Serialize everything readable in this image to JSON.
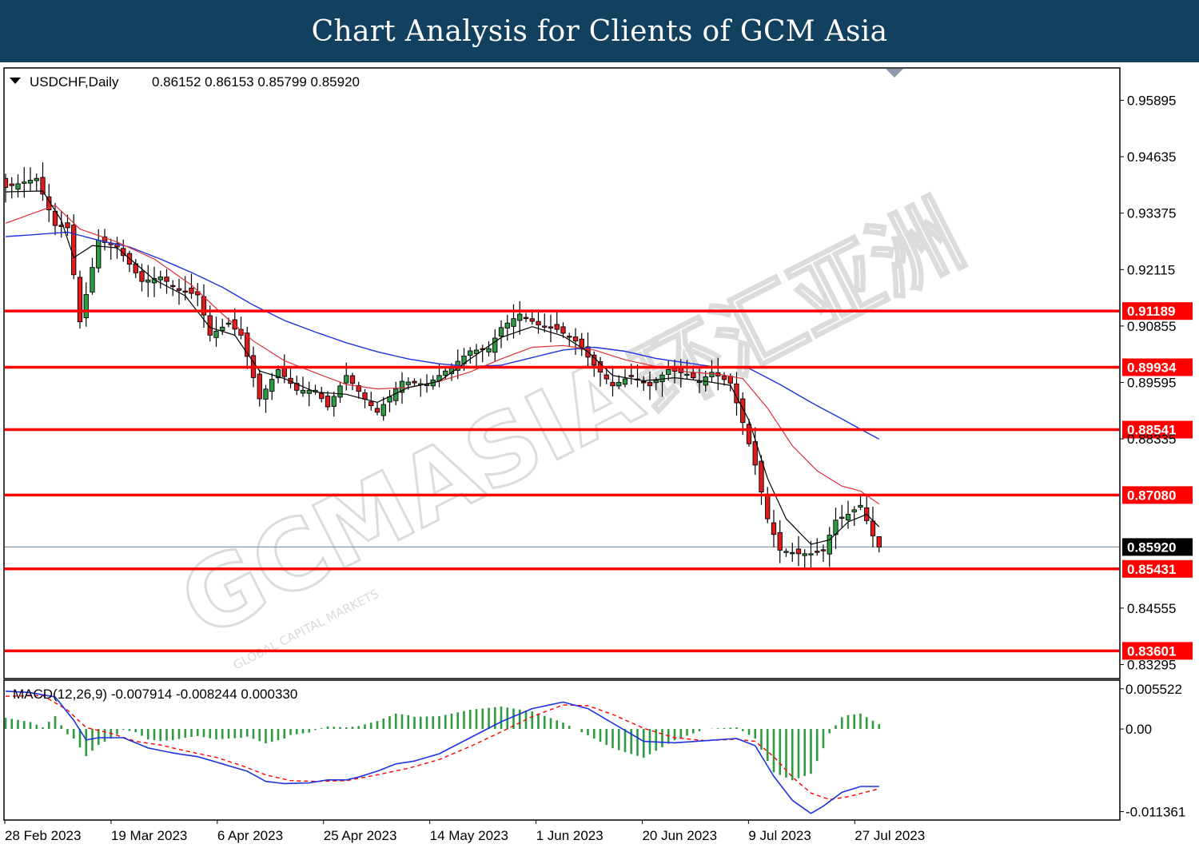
{
  "banner": {
    "title": "Chart Analysis for Clients of GCM Asia"
  },
  "watermark": {
    "brand": "GCMASIA",
    "cjk": "环汇亚洲",
    "tagline": "GLOBAL CAPITAL MARKETS"
  },
  "colors": {
    "banner_bg": "#12405f",
    "bull_candle": "#2e9a41",
    "bear_candle": "#e01b1b",
    "sma_fast": "#000000",
    "sma_mid": "#e0303a",
    "sma_slow": "#1f32e0",
    "level_line": "#ff0000",
    "current_price_line": "#8a9aa8",
    "macd_line": "#1f32e0",
    "signal_line": "#ff0000",
    "histogram": "#2e9a41"
  },
  "chart_data": [
    {
      "type": "candlestick",
      "header": "USDCHF,Daily",
      "ohlc_text": "0.86152 0.86153 0.85799 0.85920",
      "symbol": "USDCHF",
      "timeframe": "Daily",
      "last_bar": {
        "open": 0.86152,
        "high": 0.86153,
        "low": 0.85799,
        "close": 0.8592
      },
      "ylim": [
        0.83,
        0.966
      ],
      "y_ticks": [
        "0.95895",
        "0.94635",
        "0.93375",
        "0.92115",
        "0.90855",
        "0.89595",
        "0.88335",
        "0.84555",
        "0.83295"
      ],
      "x_ticks": [
        "28 Feb 2023",
        "19 Mar 2023",
        "6 Apr 2023",
        "25 Apr 2023",
        "14 May 2023",
        "1 Jun 2023",
        "20 Jun 2023",
        "9 Jul 2023",
        "27 Jul 2023"
      ],
      "levels": [
        "0.91189",
        "0.89934",
        "0.88541",
        "0.87080",
        "0.85431",
        "0.83601"
      ],
      "current_price": "0.85920",
      "close_path": [
        [
          0,
          0.9395
        ],
        [
          5,
          0.9415
        ],
        [
          8,
          0.931
        ],
        [
          10,
          0.9305
        ],
        [
          12,
          0.9095
        ],
        [
          15,
          0.9277
        ],
        [
          18,
          0.9262
        ],
        [
          22,
          0.9185
        ],
        [
          25,
          0.9195
        ],
        [
          28,
          0.9165
        ],
        [
          31,
          0.9155
        ],
        [
          33,
          0.9065
        ],
        [
          36,
          0.9092
        ],
        [
          38,
          0.9065
        ],
        [
          41,
          0.8923
        ],
        [
          44,
          0.8988
        ],
        [
          47,
          0.8942
        ],
        [
          50,
          0.8942
        ],
        [
          52,
          0.8905
        ],
        [
          55,
          0.8975
        ],
        [
          58,
          0.8922
        ],
        [
          60,
          0.8893
        ],
        [
          64,
          0.8962
        ],
        [
          68,
          0.8955
        ],
        [
          72,
          0.8995
        ],
        [
          75,
          0.903
        ],
        [
          78,
          0.9035
        ],
        [
          80,
          0.9082
        ],
        [
          83,
          0.9112
        ],
        [
          86,
          0.9088
        ],
        [
          89,
          0.9078
        ],
        [
          92,
          0.9052
        ],
        [
          95,
          0.8998
        ],
        [
          98,
          0.8952
        ],
        [
          101,
          0.8975
        ],
        [
          104,
          0.8952
        ],
        [
          107,
          0.8988
        ],
        [
          110,
          0.8978
        ],
        [
          112,
          0.8962
        ],
        [
          114,
          0.8982
        ],
        [
          117,
          0.8958
        ],
        [
          119,
          0.887
        ],
        [
          121,
          0.8775
        ],
        [
          123,
          0.8655
        ],
        [
          125,
          0.8585
        ],
        [
          128,
          0.8577
        ],
        [
          130,
          0.8577
        ],
        [
          132,
          0.8585
        ],
        [
          134,
          0.8652
        ],
        [
          136,
          0.8665
        ],
        [
          138,
          0.8685
        ],
        [
          140,
          0.8617
        ],
        [
          141,
          0.8592
        ]
      ],
      "sma_fast_path": [
        [
          0,
          0.9385
        ],
        [
          6,
          0.9387
        ],
        [
          9,
          0.9321
        ],
        [
          11,
          0.9238
        ],
        [
          14,
          0.9265
        ],
        [
          18,
          0.926
        ],
        [
          24,
          0.9189
        ],
        [
          29,
          0.9153
        ],
        [
          33,
          0.9082
        ],
        [
          37,
          0.9065
        ],
        [
          41,
          0.8985
        ],
        [
          45,
          0.8968
        ],
        [
          50,
          0.8938
        ],
        [
          55,
          0.8933
        ],
        [
          60,
          0.8915
        ],
        [
          65,
          0.8948
        ],
        [
          70,
          0.8962
        ],
        [
          75,
          0.9012
        ],
        [
          80,
          0.906
        ],
        [
          85,
          0.9084
        ],
        [
          90,
          0.9063
        ],
        [
          94,
          0.9028
        ],
        [
          98,
          0.8975
        ],
        [
          103,
          0.8963
        ],
        [
          108,
          0.897
        ],
        [
          113,
          0.8962
        ],
        [
          117,
          0.8953
        ],
        [
          120,
          0.8875
        ],
        [
          123,
          0.8745
        ],
        [
          126,
          0.8655
        ],
        [
          130,
          0.8598
        ],
        [
          133,
          0.8608
        ],
        [
          136,
          0.8648
        ],
        [
          139,
          0.8665
        ],
        [
          141,
          0.8637
        ]
      ],
      "sma_mid_path": [
        [
          0,
          0.9315
        ],
        [
          5,
          0.934
        ],
        [
          8,
          0.9355
        ],
        [
          12,
          0.9302
        ],
        [
          18,
          0.9273
        ],
        [
          24,
          0.9235
        ],
        [
          30,
          0.9177
        ],
        [
          35,
          0.9112
        ],
        [
          40,
          0.9052
        ],
        [
          45,
          0.9008
        ],
        [
          50,
          0.8981
        ],
        [
          55,
          0.8955
        ],
        [
          60,
          0.8945
        ],
        [
          65,
          0.8948
        ],
        [
          70,
          0.8962
        ],
        [
          75,
          0.8983
        ],
        [
          80,
          0.9012
        ],
        [
          85,
          0.9038
        ],
        [
          90,
          0.9042
        ],
        [
          95,
          0.9032
        ],
        [
          100,
          0.901
        ],
        [
          105,
          0.8995
        ],
        [
          110,
          0.8983
        ],
        [
          115,
          0.8978
        ],
        [
          119,
          0.8968
        ],
        [
          123,
          0.8902
        ],
        [
          127,
          0.8818
        ],
        [
          131,
          0.8762
        ],
        [
          135,
          0.8728
        ],
        [
          138,
          0.8717
        ],
        [
          141,
          0.8688
        ]
      ],
      "sma_slow_path": [
        [
          0,
          0.9285
        ],
        [
          5,
          0.929
        ],
        [
          10,
          0.9295
        ],
        [
          15,
          0.9277
        ],
        [
          20,
          0.9262
        ],
        [
          25,
          0.9235
        ],
        [
          30,
          0.9205
        ],
        [
          35,
          0.9172
        ],
        [
          40,
          0.9132
        ],
        [
          45,
          0.9098
        ],
        [
          50,
          0.9072
        ],
        [
          55,
          0.9048
        ],
        [
          60,
          0.9028
        ],
        [
          65,
          0.9012
        ],
        [
          70,
          0.9001
        ],
        [
          75,
          0.8995
        ],
        [
          80,
          0.8998
        ],
        [
          85,
          0.9015
        ],
        [
          90,
          0.9032
        ],
        [
          95,
          0.9038
        ],
        [
          100,
          0.9029
        ],
        [
          105,
          0.9013
        ],
        [
          110,
          0.9003
        ],
        [
          115,
          0.8993
        ],
        [
          120,
          0.8991
        ],
        [
          125,
          0.8955
        ],
        [
          130,
          0.8915
        ],
        [
          135,
          0.8878
        ],
        [
          138,
          0.8855
        ],
        [
          141,
          0.8833
        ]
      ]
    },
    {
      "type": "macd",
      "header": "MACD(12,26,9) -0.007914 -0.008244 0.000330",
      "params": "12,26,9",
      "main": -0.007914,
      "signal": -0.008244,
      "histogram": 0.00033,
      "ylim": [
        -0.0124,
        0.0066
      ],
      "y_ticks": [
        "0.005522",
        "0.00",
        "-0.011361"
      ],
      "macd_path": [
        [
          0,
          0.0052
        ],
        [
          4,
          0.005
        ],
        [
          8,
          0.0044
        ],
        [
          11,
          0.0012
        ],
        [
          13,
          -0.0015
        ],
        [
          15,
          -0.0012
        ],
        [
          19,
          -0.0012
        ],
        [
          23,
          -0.0026
        ],
        [
          27,
          -0.0033
        ],
        [
          31,
          -0.0038
        ],
        [
          35,
          -0.0048
        ],
        [
          39,
          -0.0058
        ],
        [
          42,
          -0.0072
        ],
        [
          45,
          -0.0075
        ],
        [
          49,
          -0.0074
        ],
        [
          52,
          -0.007
        ],
        [
          55,
          -0.007
        ],
        [
          57,
          -0.0066
        ],
        [
          60,
          -0.0058
        ],
        [
          63,
          -0.0048
        ],
        [
          66,
          -0.0044
        ],
        [
          70,
          -0.0034
        ],
        [
          75,
          -0.0012
        ],
        [
          80,
          0.001
        ],
        [
          85,
          0.0028
        ],
        [
          90,
          0.0037
        ],
        [
          94,
          0.0028
        ],
        [
          98,
          0.0008
        ],
        [
          103,
          -0.0017
        ],
        [
          108,
          -0.0019
        ],
        [
          113,
          -0.0016
        ],
        [
          118,
          -0.0013
        ],
        [
          121,
          -0.0023
        ],
        [
          124,
          -0.0065
        ],
        [
          127,
          -0.0098
        ],
        [
          130,
          -0.0116
        ],
        [
          132,
          -0.0106
        ],
        [
          135,
          -0.0087
        ],
        [
          138,
          -0.0079
        ],
        [
          141,
          -0.0079
        ]
      ],
      "signal_path": [
        [
          0,
          0.0045
        ],
        [
          6,
          0.0046
        ],
        [
          10,
          0.0026
        ],
        [
          13,
          0.0002
        ],
        [
          17,
          -0.0006
        ],
        [
          21,
          -0.0017
        ],
        [
          25,
          -0.0022
        ],
        [
          29,
          -0.003
        ],
        [
          34,
          -0.0039
        ],
        [
          38,
          -0.005
        ],
        [
          42,
          -0.0063
        ],
        [
          46,
          -0.0071
        ],
        [
          50,
          -0.0072
        ],
        [
          55,
          -0.0071
        ],
        [
          60,
          -0.0063
        ],
        [
          65,
          -0.0054
        ],
        [
          70,
          -0.0042
        ],
        [
          75,
          -0.0024
        ],
        [
          80,
          -0.0004
        ],
        [
          85,
          0.0017
        ],
        [
          90,
          0.0033
        ],
        [
          94,
          0.0032
        ],
        [
          98,
          0.002
        ],
        [
          103,
          0.0001
        ],
        [
          108,
          -0.0012
        ],
        [
          113,
          -0.0016
        ],
        [
          118,
          -0.0014
        ],
        [
          121,
          -0.0017
        ],
        [
          124,
          -0.0038
        ],
        [
          127,
          -0.0066
        ],
        [
          130,
          -0.0088
        ],
        [
          133,
          -0.0097
        ],
        [
          136,
          -0.0093
        ],
        [
          141,
          -0.0082
        ]
      ]
    }
  ]
}
